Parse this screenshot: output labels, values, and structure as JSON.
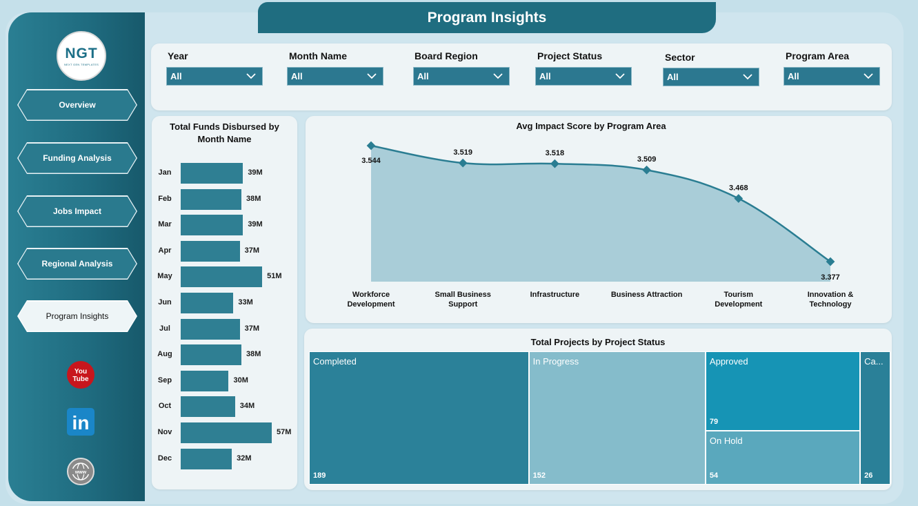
{
  "header": {
    "title": "Program Insights"
  },
  "logo": {
    "text": "NGT",
    "subtitle": "NEXT GEN TEMPLATES"
  },
  "nav": [
    {
      "label": "Overview",
      "active": false
    },
    {
      "label": "Funding Analysis",
      "active": false
    },
    {
      "label": "Jobs Impact",
      "active": false
    },
    {
      "label": "Regional Analysis",
      "active": false
    },
    {
      "label": "Program Insights",
      "active": true
    }
  ],
  "social": [
    {
      "icon": "youtube-icon",
      "text_top": "You",
      "text_bottom": "Tube"
    },
    {
      "icon": "linkedin-icon",
      "text": "in"
    },
    {
      "icon": "globe-icon",
      "text": "www"
    }
  ],
  "filters": [
    {
      "label": "Year",
      "value": "All"
    },
    {
      "label": "Month Name",
      "value": "All"
    },
    {
      "label": "Board Region",
      "value": "All"
    },
    {
      "label": "Project Status",
      "value": "All"
    },
    {
      "label": "Sector",
      "value": "All"
    },
    {
      "label": "Program Area",
      "value": "All"
    }
  ],
  "chart_data": [
    {
      "type": "bar",
      "orientation": "horizontal",
      "title": "Total Funds Disbursed by Month Name",
      "categories": [
        "Jan",
        "Feb",
        "Mar",
        "Apr",
        "May",
        "Jun",
        "Jul",
        "Aug",
        "Sep",
        "Oct",
        "Nov",
        "Dec"
      ],
      "values": [
        39,
        38,
        39,
        37,
        51,
        33,
        37,
        38,
        30,
        34,
        57,
        32
      ],
      "labels": [
        "39M",
        "38M",
        "39M",
        "37M",
        "51M",
        "33M",
        "37M",
        "38M",
        "30M",
        "34M",
        "57M",
        "32M"
      ],
      "color": "#2f7f93"
    },
    {
      "type": "area",
      "title": "Avg Impact Score by Program Area",
      "categories": [
        "Workforce Development",
        "Small Business Support",
        "Infrastructure",
        "Business Attraction",
        "Tourism Development",
        "Innovation & Technology"
      ],
      "category_lines": [
        [
          "Workforce",
          "Development"
        ],
        [
          "Small Business",
          "Support"
        ],
        [
          "Infrastructure"
        ],
        [
          "Business Attraction"
        ],
        [
          "Tourism",
          "Development"
        ],
        [
          "Innovation &",
          "Technology"
        ]
      ],
      "values": [
        3.544,
        3.519,
        3.518,
        3.509,
        3.468,
        3.377
      ],
      "labels": [
        "3.544",
        "3.519",
        "3.518",
        "3.509",
        "3.468",
        "3.377"
      ],
      "line_color": "#2a7d92",
      "fill_color": "#a9cdd8"
    },
    {
      "type": "treemap",
      "title": "Total Projects by Project Status",
      "items": [
        {
          "name": "Completed",
          "value": 189,
          "color": "#2b8199"
        },
        {
          "name": "In Progress",
          "value": 152,
          "color": "#85bccb"
        },
        {
          "name": "Approved",
          "value": 79,
          "color": "#1694b5"
        },
        {
          "name": "On Hold",
          "value": 54,
          "color": "#5aa8bd"
        },
        {
          "name": "Ca...",
          "value": 26,
          "color": "#2a8098"
        }
      ]
    }
  ]
}
